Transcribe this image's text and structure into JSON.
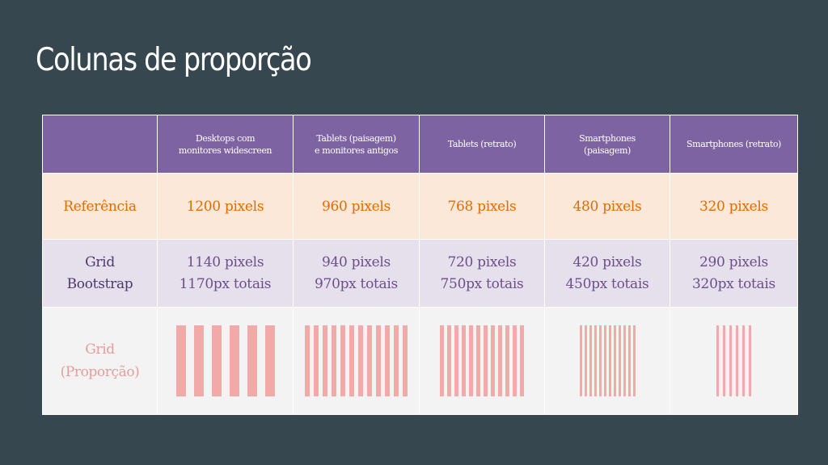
{
  "title": "Colunas de proporção",
  "table": {
    "headers": [
      "Desktops com monitores widescreen",
      "Tablets (paisagem) e monitores antigos",
      "Tablets (retrato)",
      "Smartphones (paisagem)",
      "Smartphones (retrato)"
    ],
    "header_lines": [
      [
        "Desktops com",
        "monitores widescreen"
      ],
      [
        "Tablets (paisagem)",
        "e monitores antigos"
      ],
      [
        "Tablets (retrato)"
      ],
      [
        "Smartphones",
        "(paisagem)"
      ],
      [
        "Smartphones (retrato)"
      ]
    ],
    "rows": {
      "reference": {
        "label": "Referência",
        "values": [
          "1200 pixels",
          "960 pixels",
          "768 pixels",
          "480 pixels",
          "320 pixels"
        ]
      },
      "bootstrap": {
        "label_lines": [
          "Grid",
          "Bootstrap"
        ],
        "values": [
          "1140 pixels",
          "940 pixels",
          "720 pixels",
          "420 pixels",
          "290 pixels"
        ],
        "totals": [
          "1170px totais",
          "970px totais",
          "750px totais",
          "450px totais",
          "320px totais"
        ]
      },
      "proportion": {
        "label_lines": [
          "Grid",
          "(Proporção)"
        ],
        "column_counts": [
          6,
          12,
          12,
          12,
          6
        ]
      }
    }
  },
  "colors": {
    "background": "#37474f",
    "header": "#7e63a2",
    "reference_row": "#fce8d9",
    "reference_text": "#e06c00",
    "bootstrap_row": "#e6e0ec",
    "bootstrap_text": "#6b4f8a",
    "proportion_row": "#f3f3f3",
    "proportion_bar": "#f1aaa8"
  }
}
